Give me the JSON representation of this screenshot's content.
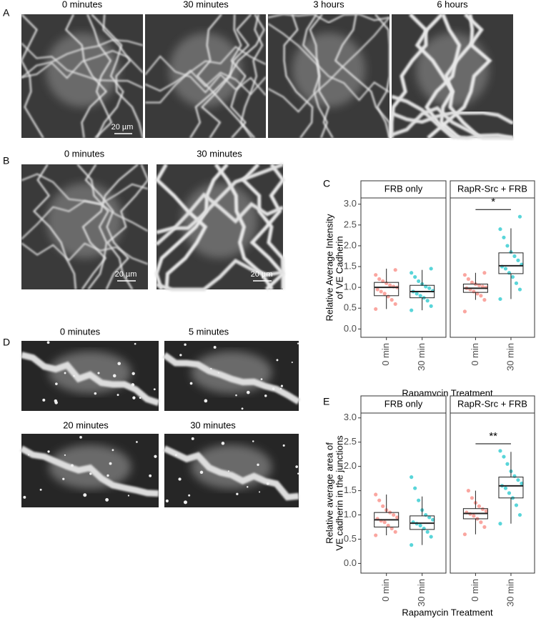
{
  "panels": {
    "A": {
      "label": "A",
      "titles": [
        "0 minutes",
        "30 minutes",
        "3 hours",
        "6 hours"
      ],
      "scale_bar": "20 µm"
    },
    "B": {
      "label": "B",
      "titles": [
        "0 minutes",
        "30 minutes"
      ],
      "scale_bars": [
        "20 µm",
        "20 µm"
      ]
    },
    "D": {
      "label": "D",
      "titles": [
        "0 minutes",
        "5 minutes",
        "20 minutes",
        "30 minutes"
      ]
    }
  },
  "chart_data": [
    {
      "type": "box",
      "panel_label": "C",
      "ylabel": [
        "Relative Average Intensity",
        "of VE Cadherin"
      ],
      "xlabel": "Rapamycin Treatment",
      "ylim": [
        -0.2,
        3.15
      ],
      "yticks": [
        {
          "value": 0,
          "label": "0.0"
        },
        {
          "value": 0.5,
          "label": "0.5"
        },
        {
          "value": 1,
          "label": "1.0"
        },
        {
          "value": 1.5,
          "label": "1.5"
        },
        {
          "value": 2,
          "label": "2.0"
        },
        {
          "value": 2.5,
          "label": "2.5"
        },
        {
          "value": 3,
          "label": "3.0"
        }
      ],
      "facets": [
        {
          "name": "FRB only",
          "boxes": [
            {
              "category": "0 min",
              "color": "#f8766d",
              "min": 0.48,
              "q1": 0.8,
              "median": 1.0,
              "q3": 1.12,
              "max": 1.45,
              "points": [
                0.48,
                0.6,
                0.7,
                0.78,
                0.85,
                0.9,
                0.95,
                1.0,
                1.02,
                1.05,
                1.1,
                1.15,
                1.2,
                1.3,
                1.42
              ]
            },
            {
              "category": "30 min",
              "color": "#00bfc4",
              "min": 0.45,
              "q1": 0.75,
              "median": 0.9,
              "q3": 1.05,
              "max": 1.42,
              "points": [
                0.45,
                0.55,
                0.68,
                0.75,
                0.8,
                0.85,
                0.9,
                0.92,
                0.98,
                1.02,
                1.08,
                1.15,
                1.25,
                1.35,
                1.45
              ]
            }
          ]
        },
        {
          "name": "RapR-Src + FRB",
          "significance": "*",
          "boxes": [
            {
              "category": "0 min",
              "color": "#f8766d",
              "min": 0.7,
              "q1": 0.88,
              "median": 0.98,
              "q3": 1.08,
              "max": 1.35,
              "points": [
                0.42,
                0.7,
                0.8,
                0.85,
                0.9,
                0.95,
                0.98,
                1.0,
                1.02,
                1.05,
                1.08,
                1.12,
                1.2,
                1.3,
                1.35
              ]
            },
            {
              "category": "30 min",
              "color": "#00bfc4",
              "min": 0.72,
              "q1": 1.33,
              "median": 1.52,
              "q3": 1.83,
              "max": 2.42,
              "points": [
                0.72,
                0.95,
                1.1,
                1.25,
                1.35,
                1.45,
                1.5,
                1.55,
                1.65,
                1.75,
                1.85,
                2.0,
                2.2,
                2.4,
                2.7
              ]
            }
          ]
        }
      ]
    },
    {
      "type": "box",
      "panel_label": "E",
      "ylabel": [
        "Relative average area of",
        "VE cadherin in the junctions"
      ],
      "xlabel": "Rapamycin Treatment",
      "ylim": [
        -0.2,
        3.1
      ],
      "yticks": [
        {
          "value": 0,
          "label": "0.0"
        },
        {
          "value": 0.5,
          "label": "0.5"
        },
        {
          "value": 1,
          "label": "1.0"
        },
        {
          "value": 1.5,
          "label": "1.5"
        },
        {
          "value": 2,
          "label": "2.0"
        },
        {
          "value": 2.5,
          "label": "2.5"
        },
        {
          "value": 3,
          "label": "3.0"
        }
      ],
      "facets": [
        {
          "name": "FRB only",
          "boxes": [
            {
              "category": "0 min",
              "color": "#f8766d",
              "min": 0.58,
              "q1": 0.75,
              "median": 0.9,
              "q3": 1.05,
              "max": 1.42,
              "points": [
                0.58,
                0.65,
                0.72,
                0.78,
                0.85,
                0.88,
                0.92,
                0.95,
                1.0,
                1.05,
                1.1,
                1.18,
                1.3,
                1.42
              ]
            },
            {
              "category": "30 min",
              "color": "#00bfc4",
              "min": 0.38,
              "q1": 0.7,
              "median": 0.83,
              "q3": 0.98,
              "max": 1.38,
              "points": [
                0.38,
                0.55,
                0.65,
                0.72,
                0.78,
                0.82,
                0.85,
                0.9,
                0.95,
                1.0,
                1.1,
                1.3,
                1.55,
                1.78
              ]
            }
          ]
        },
        {
          "name": "RapR-Src + FRB",
          "significance": "**",
          "boxes": [
            {
              "category": "0 min",
              "color": "#f8766d",
              "min": 0.6,
              "q1": 0.92,
              "median": 1.03,
              "q3": 1.13,
              "max": 1.5,
              "points": [
                0.6,
                0.75,
                0.85,
                0.92,
                0.98,
                1.02,
                1.05,
                1.08,
                1.12,
                1.18,
                1.25,
                1.35,
                1.5
              ]
            },
            {
              "category": "30 min",
              "color": "#00bfc4",
              "min": 0.82,
              "q1": 1.35,
              "median": 1.6,
              "q3": 1.78,
              "max": 2.3,
              "points": [
                0.82,
                1.0,
                1.2,
                1.35,
                1.45,
                1.55,
                1.6,
                1.65,
                1.72,
                1.8,
                1.9,
                2.05,
                2.2,
                2.32
              ]
            }
          ]
        }
      ]
    }
  ]
}
